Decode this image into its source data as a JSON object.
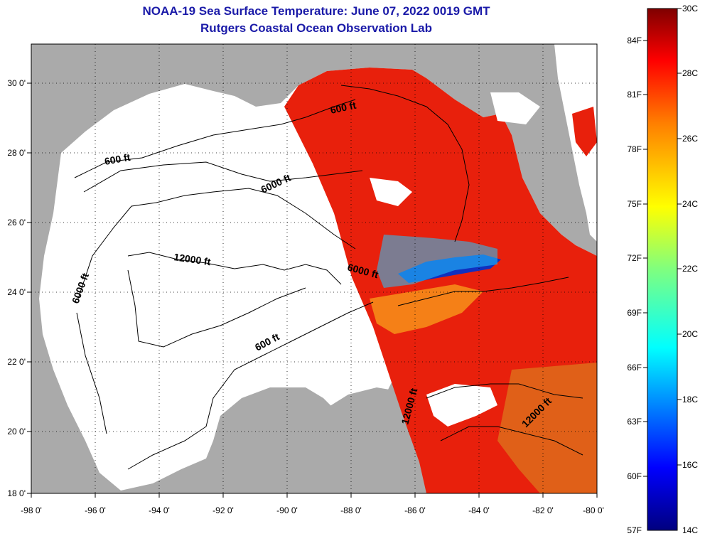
{
  "title": "NOAA-19 Sea Surface Temperature:  June 07, 2022 0019 GMT",
  "subtitle": "Rutgers Coastal Ocean Observation Lab",
  "lon_ticks": [
    "-98 0'",
    "-96 0'",
    "-94 0'",
    "-92 0'",
    "-90 0'",
    "-88 0'",
    "-86 0'",
    "-84 0'",
    "-82 0'",
    "-80 0'"
  ],
  "lat_ticks": [
    "30 0'",
    "28 0'",
    "26 0'",
    "24 0'",
    "22 0'",
    "20 0'",
    "18 0'"
  ],
  "contour_labels": [
    "600 ft",
    "600 ft",
    "6000 ft",
    "12000 ft",
    "6000 ft",
    "6000 ft",
    "600 ft",
    "12000 ft",
    "12000 ft"
  ],
  "colorbar": {
    "fahrenheit": [
      "84F",
      "81F",
      "78F",
      "75F",
      "72F",
      "69F",
      "66F",
      "63F",
      "60F",
      "57F"
    ],
    "celsius": [
      "30C",
      "28C",
      "26C",
      "24C",
      "22C",
      "20C",
      "18C",
      "16C",
      "14C"
    ],
    "range_c": [
      14,
      30
    ]
  },
  "colors": {
    "land": "#aaaaaa",
    "sea_no_data": "#ffffff",
    "warm_sst": "#e8200c",
    "title": "#1a1aa8"
  }
}
